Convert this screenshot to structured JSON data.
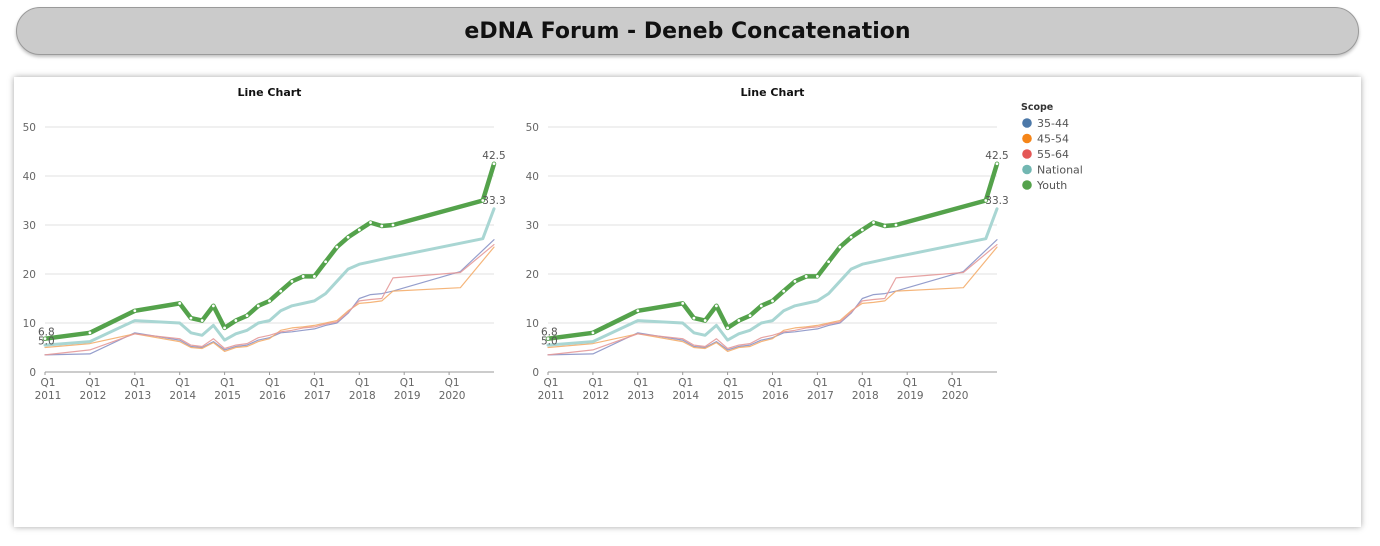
{
  "header": {
    "title": "eDNA Forum - Deneb Concatenation"
  },
  "legend": {
    "title": "Scope",
    "items": [
      {
        "label": "35-44",
        "color": "#4c78a8"
      },
      {
        "label": "45-54",
        "color": "#f58518"
      },
      {
        "label": "55-64",
        "color": "#e45756"
      },
      {
        "label": "National",
        "color": "#72b7b2"
      },
      {
        "label": "Youth",
        "color": "#54a24b"
      }
    ]
  },
  "chart_data": [
    {
      "type": "line",
      "title": "Line Chart",
      "xlabel": "",
      "ylabel": "",
      "ylim": [
        0,
        50
      ],
      "yticks": [
        0,
        10,
        20,
        30,
        40,
        50
      ],
      "xlim": [
        2011.0,
        2021.0
      ],
      "xticks": [
        {
          "value": 2011.0,
          "quarter": "Q1",
          "year": "2011"
        },
        {
          "value": 2012.0,
          "quarter": "Q1",
          "year": "2012"
        },
        {
          "value": 2013.0,
          "quarter": "Q1",
          "year": "2013"
        },
        {
          "value": 2014.0,
          "quarter": "Q1",
          "year": "2014"
        },
        {
          "value": 2015.0,
          "quarter": "Q1",
          "year": "2015"
        },
        {
          "value": 2016.0,
          "quarter": "Q1",
          "year": "2016"
        },
        {
          "value": 2017.0,
          "quarter": "Q1",
          "year": "2017"
        },
        {
          "value": 2018.0,
          "quarter": "Q1",
          "year": "2018"
        },
        {
          "value": 2019.0,
          "quarter": "Q1",
          "year": "2019"
        },
        {
          "value": 2020.0,
          "quarter": "Q1",
          "year": "2020"
        }
      ],
      "grid": true,
      "legend_position": "right",
      "series": [
        {
          "name": "35-44",
          "x": [
            2011.0,
            2012.0,
            2013.0,
            2014.0,
            2014.25,
            2014.5,
            2014.75,
            2015.0,
            2015.25,
            2015.5,
            2015.75,
            2016.0,
            2016.25,
            2016.5,
            2016.75,
            2017.0,
            2017.25,
            2017.5,
            2017.75,
            2018.0,
            2018.25,
            2018.5,
            2018.75,
            2020.25,
            2021.0
          ],
          "values": [
            3.5,
            3.7,
            8.0,
            6.5,
            5.2,
            5.0,
            6.2,
            4.5,
            5.2,
            5.5,
            6.5,
            7.0,
            8.0,
            8.2,
            8.5,
            8.8,
            9.5,
            10.0,
            12.0,
            15.0,
            15.8,
            16.0,
            16.5,
            20.5,
            27.0
          ]
        },
        {
          "name": "45-54",
          "x": [
            2011.0,
            2012.0,
            2013.0,
            2014.0,
            2014.25,
            2014.5,
            2014.75,
            2015.0,
            2015.25,
            2015.5,
            2015.75,
            2016.0,
            2016.25,
            2016.5,
            2016.75,
            2017.0,
            2017.25,
            2017.5,
            2017.75,
            2018.0,
            2018.25,
            2018.5,
            2018.75,
            2020.25,
            2021.0
          ],
          "values": [
            5.0,
            5.8,
            7.8,
            6.2,
            5.0,
            4.8,
            6.0,
            4.2,
            5.0,
            5.2,
            6.2,
            6.8,
            8.5,
            9.0,
            9.2,
            9.5,
            10.0,
            10.5,
            12.5,
            14.0,
            14.2,
            14.5,
            16.5,
            17.2,
            25.5
          ]
        },
        {
          "name": "55-64",
          "x": [
            2011.0,
            2012.0,
            2013.0,
            2014.0,
            2014.25,
            2014.5,
            2014.75,
            2015.0,
            2015.25,
            2015.5,
            2015.75,
            2016.0,
            2016.25,
            2016.5,
            2016.75,
            2017.0,
            2017.25,
            2017.5,
            2017.75,
            2018.0,
            2018.25,
            2018.5,
            2018.75,
            2020.25,
            2021.0
          ],
          "values": [
            3.5,
            4.5,
            7.8,
            6.8,
            5.5,
            5.2,
            6.8,
            4.8,
            5.5,
            5.8,
            7.0,
            7.5,
            8.2,
            8.5,
            9.0,
            9.2,
            9.8,
            10.2,
            12.2,
            14.5,
            14.8,
            15.0,
            19.2,
            20.3,
            26.0
          ]
        },
        {
          "name": "National",
          "x": [
            2011.0,
            2012.0,
            2013.0,
            2014.0,
            2014.25,
            2014.5,
            2014.75,
            2015.0,
            2015.25,
            2015.5,
            2015.75,
            2016.0,
            2016.25,
            2016.5,
            2016.75,
            2017.0,
            2017.25,
            2017.5,
            2017.75,
            2018.0,
            2018.25,
            2018.5,
            2018.75,
            2020.75,
            2021.0
          ],
          "values": [
            5.5,
            6.2,
            10.5,
            10.0,
            8.0,
            7.5,
            9.5,
            6.5,
            7.8,
            8.5,
            10.0,
            10.5,
            12.5,
            13.5,
            14.0,
            14.5,
            16.0,
            18.5,
            21.0,
            22.0,
            22.5,
            23.0,
            23.5,
            27.2,
            33.3
          ]
        },
        {
          "name": "Youth",
          "x": [
            2011.0,
            2012.0,
            2013.0,
            2014.0,
            2014.25,
            2014.5,
            2014.75,
            2015.0,
            2015.25,
            2015.5,
            2015.75,
            2016.0,
            2016.25,
            2016.5,
            2016.75,
            2017.0,
            2017.25,
            2017.5,
            2017.75,
            2018.0,
            2018.25,
            2018.5,
            2018.75,
            2020.75,
            2021.0
          ],
          "values": [
            6.8,
            8.0,
            12.5,
            14.0,
            11.0,
            10.5,
            13.5,
            9.0,
            10.5,
            11.5,
            13.5,
            14.5,
            16.5,
            18.5,
            19.5,
            19.5,
            22.5,
            25.5,
            27.5,
            29.0,
            30.5,
            29.8,
            30.0,
            35.0,
            42.5
          ]
        }
      ],
      "data_labels": [
        {
          "series": "Youth",
          "position": "start",
          "text": "6.8"
        },
        {
          "series": "45-54",
          "position": "start",
          "text": "5.0"
        },
        {
          "series": "Youth",
          "position": "end",
          "text": "42.5"
        },
        {
          "series": "National",
          "position": "end",
          "text": "33.3"
        }
      ]
    },
    {
      "type": "line",
      "title": "Line Chart",
      "xlabel": "",
      "ylabel": "",
      "ylim": [
        0,
        50
      ],
      "yticks": [
        0,
        10,
        20,
        30,
        40,
        50
      ],
      "xlim": [
        2011.0,
        2021.0
      ],
      "xticks": [
        {
          "value": 2011.0,
          "quarter": "Q1",
          "year": "2011"
        },
        {
          "value": 2012.0,
          "quarter": "Q1",
          "year": "2012"
        },
        {
          "value": 2013.0,
          "quarter": "Q1",
          "year": "2013"
        },
        {
          "value": 2014.0,
          "quarter": "Q1",
          "year": "2014"
        },
        {
          "value": 2015.0,
          "quarter": "Q1",
          "year": "2015"
        },
        {
          "value": 2016.0,
          "quarter": "Q1",
          "year": "2016"
        },
        {
          "value": 2017.0,
          "quarter": "Q1",
          "year": "2017"
        },
        {
          "value": 2018.0,
          "quarter": "Q1",
          "year": "2018"
        },
        {
          "value": 2019.0,
          "quarter": "Q1",
          "year": "2019"
        },
        {
          "value": 2020.0,
          "quarter": "Q1",
          "year": "2020"
        }
      ],
      "grid": true,
      "legend_position": "right",
      "series": [
        {
          "name": "35-44",
          "x": [
            2011.0,
            2012.0,
            2013.0,
            2014.0,
            2014.25,
            2014.5,
            2014.75,
            2015.0,
            2015.25,
            2015.5,
            2015.75,
            2016.0,
            2016.25,
            2016.5,
            2016.75,
            2017.0,
            2017.25,
            2017.5,
            2017.75,
            2018.0,
            2018.25,
            2018.5,
            2018.75,
            2020.25,
            2021.0
          ],
          "values": [
            3.5,
            3.7,
            8.0,
            6.5,
            5.2,
            5.0,
            6.2,
            4.5,
            5.2,
            5.5,
            6.5,
            7.0,
            8.0,
            8.2,
            8.5,
            8.8,
            9.5,
            10.0,
            12.0,
            15.0,
            15.8,
            16.0,
            16.5,
            20.5,
            27.0
          ]
        },
        {
          "name": "45-54",
          "x": [
            2011.0,
            2012.0,
            2013.0,
            2014.0,
            2014.25,
            2014.5,
            2014.75,
            2015.0,
            2015.25,
            2015.5,
            2015.75,
            2016.0,
            2016.25,
            2016.5,
            2016.75,
            2017.0,
            2017.25,
            2017.5,
            2017.75,
            2018.0,
            2018.25,
            2018.5,
            2018.75,
            2020.25,
            2021.0
          ],
          "values": [
            5.0,
            5.8,
            7.8,
            6.2,
            5.0,
            4.8,
            6.0,
            4.2,
            5.0,
            5.2,
            6.2,
            6.8,
            8.5,
            9.0,
            9.2,
            9.5,
            10.0,
            10.5,
            12.5,
            14.0,
            14.2,
            14.5,
            16.5,
            17.2,
            25.5
          ]
        },
        {
          "name": "55-64",
          "x": [
            2011.0,
            2012.0,
            2013.0,
            2014.0,
            2014.25,
            2014.5,
            2014.75,
            2015.0,
            2015.25,
            2015.5,
            2015.75,
            2016.0,
            2016.25,
            2016.5,
            2016.75,
            2017.0,
            2017.25,
            2017.5,
            2017.75,
            2018.0,
            2018.25,
            2018.5,
            2018.75,
            2020.25,
            2021.0
          ],
          "values": [
            3.5,
            4.5,
            7.8,
            6.8,
            5.5,
            5.2,
            6.8,
            4.8,
            5.5,
            5.8,
            7.0,
            7.5,
            8.2,
            8.5,
            9.0,
            9.2,
            9.8,
            10.2,
            12.2,
            14.5,
            14.8,
            15.0,
            19.2,
            20.3,
            26.0
          ]
        },
        {
          "name": "National",
          "x": [
            2011.0,
            2012.0,
            2013.0,
            2014.0,
            2014.25,
            2014.5,
            2014.75,
            2015.0,
            2015.25,
            2015.5,
            2015.75,
            2016.0,
            2016.25,
            2016.5,
            2016.75,
            2017.0,
            2017.25,
            2017.5,
            2017.75,
            2018.0,
            2018.25,
            2018.5,
            2018.75,
            2020.75,
            2021.0
          ],
          "values": [
            5.5,
            6.2,
            10.5,
            10.0,
            8.0,
            7.5,
            9.5,
            6.5,
            7.8,
            8.5,
            10.0,
            10.5,
            12.5,
            13.5,
            14.0,
            14.5,
            16.0,
            18.5,
            21.0,
            22.0,
            22.5,
            23.0,
            23.5,
            27.2,
            33.3
          ]
        },
        {
          "name": "Youth",
          "x": [
            2011.0,
            2012.0,
            2013.0,
            2014.0,
            2014.25,
            2014.5,
            2014.75,
            2015.0,
            2015.25,
            2015.5,
            2015.75,
            2016.0,
            2016.25,
            2016.5,
            2016.75,
            2017.0,
            2017.25,
            2017.5,
            2017.75,
            2018.0,
            2018.25,
            2018.5,
            2018.75,
            2020.75,
            2021.0
          ],
          "values": [
            6.8,
            8.0,
            12.5,
            14.0,
            11.0,
            10.5,
            13.5,
            9.0,
            10.5,
            11.5,
            13.5,
            14.5,
            16.5,
            18.5,
            19.5,
            19.5,
            22.5,
            25.5,
            27.5,
            29.0,
            30.5,
            29.8,
            30.0,
            35.0,
            42.5
          ]
        }
      ],
      "data_labels": [
        {
          "series": "Youth",
          "position": "start",
          "text": "6.8"
        },
        {
          "series": "45-54",
          "position": "start",
          "text": "5.0"
        },
        {
          "series": "Youth",
          "position": "end",
          "text": "42.5"
        },
        {
          "series": "National",
          "position": "end",
          "text": "33.3"
        }
      ]
    }
  ]
}
